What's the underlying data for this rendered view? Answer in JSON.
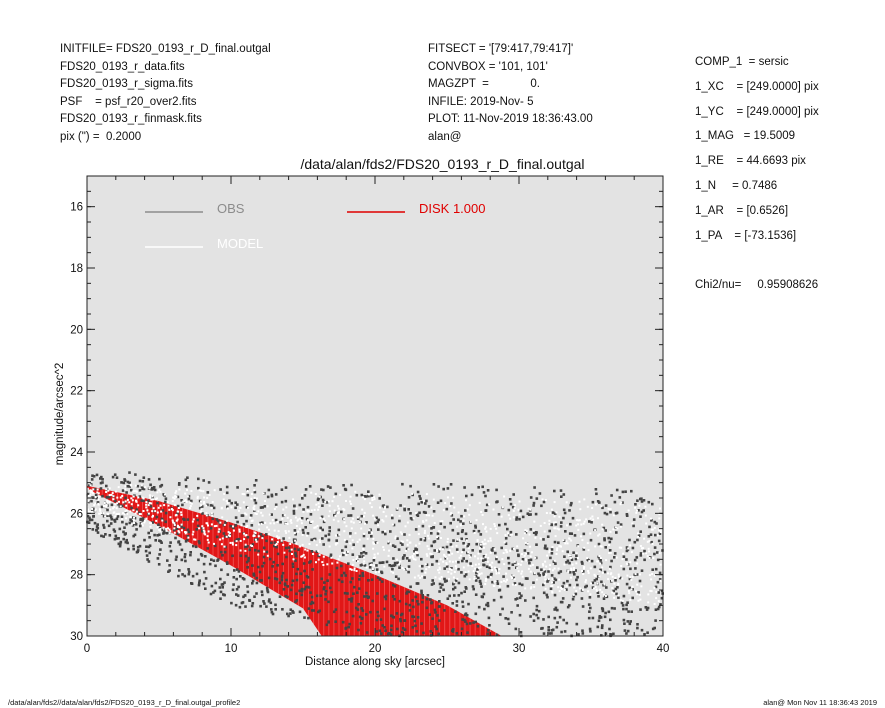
{
  "header_left": [
    "INITFILE= FDS20_0193_r_D_final.outgal",
    "FDS20_0193_r_data.fits",
    "FDS20_0193_r_sigma.fits",
    "PSF    = psf_r20_over2.fits",
    "FDS20_0193_r_finmask.fits",
    "pix (\") =  0.2000"
  ],
  "header_mid": [
    "FITSECT = '[79:417,79:417]'",
    "CONVBOX = '101, 101'",
    "MAGZPT  =             0.",
    "INFILE: 2019-Nov- 5",
    "PLOT: 11-Nov-2019 18:36:43.00",
    "alan@"
  ],
  "header_right": [
    "COMP_1  = sersic",
    "1_XC    = [249.0000] pix",
    "1_YC    = [249.0000] pix",
    "1_MAG   = 19.5009",
    "1_RE    = 44.6693 pix",
    "1_N     = 0.7486",
    "1_AR    = [0.6526]",
    "1_PA    = [-73.1536]",
    "",
    "Chi2/nu=     0.95908626"
  ],
  "footer_left": "/data/alan/fds2//data/alan/fds2/FDS20_0193_r_D_final.outgal_profile2",
  "footer_right": "alan@  Mon Nov 11 18:36:43 2019",
  "colors": {
    "plot_bg": "#e3e3e3",
    "obs": "#444444",
    "obs_legend": "#8c8c8c",
    "model": "#ffffff",
    "disk": "#e00000"
  },
  "chart_data": {
    "type": "scatter",
    "title": "/data/alan/fds2/FDS20_0193_r_D_final.outgal",
    "xlabel": "Distance along sky [arcsec]",
    "ylabel": "magnitude/arcsec^2",
    "xlim": [
      0,
      40
    ],
    "ylim": [
      30,
      15
    ],
    "y_inverted": true,
    "xticks": [
      0,
      10,
      20,
      30,
      40
    ],
    "yticks": [
      16,
      18,
      20,
      22,
      24,
      26,
      28,
      30
    ],
    "grid": false,
    "legend": {
      "placement": "top-left",
      "items": [
        {
          "label": "OBS",
          "color": "#8c8c8c"
        },
        {
          "label": "DISK  1.000",
          "color": "#e00000"
        },
        {
          "label": "MODEL",
          "color": "#ffffff"
        }
      ]
    },
    "series": [
      {
        "name": "OBS",
        "kind": "scatter",
        "color": "#444444",
        "cloud": {
          "x_range": [
            0,
            40
          ],
          "upper_edge": [
            [
              0,
              24.7
            ],
            [
              3,
              24.6
            ],
            [
              10,
              24.9
            ],
            [
              20,
              25.0
            ],
            [
              30,
              25.1
            ],
            [
              40,
              25.3
            ]
          ],
          "lower_edge": [
            [
              0,
              26.5
            ],
            [
              10,
              29.0
            ],
            [
              20,
              30.0
            ],
            [
              40,
              30.0
            ]
          ],
          "n_points": 1600
        }
      },
      {
        "name": "MODEL",
        "kind": "scatter",
        "color": "#ffffff",
        "cloud": {
          "x_range": [
            0,
            40
          ],
          "upper_edge": [
            [
              0,
              25.0
            ],
            [
              10,
              25.2
            ],
            [
              20,
              25.3
            ],
            [
              40,
              25.6
            ]
          ],
          "lower_edge": [
            [
              0,
              26.0
            ],
            [
              10,
              27.2
            ],
            [
              20,
              28.0
            ],
            [
              40,
              29.0
            ]
          ],
          "n_points": 1200
        }
      },
      {
        "name": "DISK  1.000",
        "kind": "band",
        "color": "#e00000",
        "upper": [
          [
            0,
            25.1
          ],
          [
            5,
            25.6
          ],
          [
            10,
            26.3
          ],
          [
            15,
            27.1
          ],
          [
            20,
            28.0
          ],
          [
            25,
            29.0
          ],
          [
            28.8,
            30.0
          ]
        ],
        "lower": [
          [
            0,
            25.2
          ],
          [
            5,
            26.4
          ],
          [
            10,
            27.7
          ],
          [
            15,
            29.1
          ],
          [
            16.3,
            30.0
          ]
        ]
      }
    ]
  }
}
